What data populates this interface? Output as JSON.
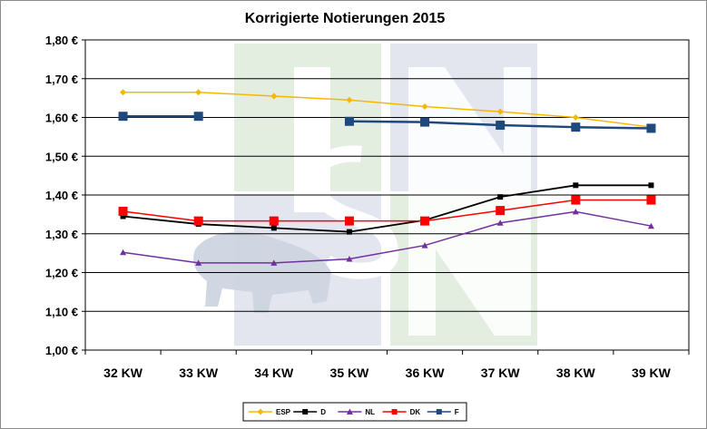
{
  "chart_data": {
    "type": "line",
    "title": "Korrigierte Notierungen 2015",
    "xlabel": "",
    "ylabel": "",
    "categories": [
      "32 KW",
      "33 KW",
      "34 KW",
      "35 KW",
      "36 KW",
      "37 KW",
      "38 KW",
      "39 KW"
    ],
    "ylim": [
      1.0,
      1.8
    ],
    "yticks": [
      "1,00 €",
      "1,10 €",
      "1,20 €",
      "1,30 €",
      "1,40 €",
      "1,50 €",
      "1,60 €",
      "1,70 €",
      "1,80 €"
    ],
    "grid": true,
    "legend_position": "bottom",
    "watermark": "ISN",
    "series": [
      {
        "name": "ESP",
        "color": "#f5b800",
        "marker": "diamond",
        "values": [
          1.665,
          1.665,
          1.655,
          1.645,
          1.628,
          1.615,
          1.6,
          1.575
        ]
      },
      {
        "name": "D",
        "color": "#000000",
        "marker": "square-small",
        "values": [
          1.345,
          1.325,
          1.315,
          1.305,
          1.335,
          1.395,
          1.425,
          1.425
        ]
      },
      {
        "name": "NL",
        "color": "#7030a0",
        "marker": "triangle",
        "values": [
          1.252,
          1.225,
          1.225,
          1.235,
          1.27,
          1.328,
          1.357,
          1.32
        ]
      },
      {
        "name": "DK",
        "color": "#ff0000",
        "marker": "square",
        "values": [
          1.358,
          1.333,
          1.333,
          1.333,
          1.333,
          1.36,
          1.387,
          1.387
        ]
      },
      {
        "name": "F",
        "color": "#1f497d",
        "marker": "square",
        "values": [
          1.603,
          1.603,
          null,
          1.59,
          1.588,
          1.58,
          1.575,
          1.572
        ]
      }
    ]
  }
}
